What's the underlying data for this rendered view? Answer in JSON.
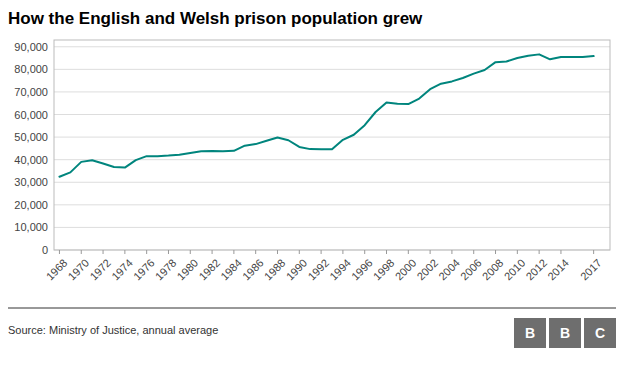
{
  "chart_data": {
    "type": "line",
    "title": "How the English and Welsh prison population grew",
    "source": "Source: Ministry of Justice, annual average",
    "logo_letters": [
      "B",
      "B",
      "C"
    ],
    "color": "#00857d",
    "grid": true,
    "x": [
      1968,
      1969,
      1970,
      1971,
      1972,
      1973,
      1974,
      1975,
      1976,
      1977,
      1978,
      1979,
      1980,
      1981,
      1982,
      1983,
      1984,
      1985,
      1986,
      1987,
      1988,
      1989,
      1990,
      1991,
      1992,
      1993,
      1994,
      1995,
      1996,
      1997,
      1998,
      1999,
      2000,
      2001,
      2002,
      2003,
      2004,
      2005,
      2006,
      2007,
      2008,
      2009,
      2010,
      2011,
      2012,
      2013,
      2014,
      2015,
      2016,
      2017
    ],
    "values": [
      32461,
      34374,
      39028,
      39709,
      38328,
      36774,
      36500,
      39820,
      41570,
      41570,
      41796,
      42220,
      43000,
      43700,
      43800,
      43700,
      43900,
      46200,
      46900,
      48400,
      49800,
      48600,
      45636,
      44678,
      44628,
      44565,
      48794,
      51047,
      55281,
      61114,
      65298,
      64770,
      64602,
      67055,
      71218,
      73657,
      74657,
      76190,
      78127,
      79734,
      83194,
      83454,
      85002,
      86048,
      86634,
      84430,
      85509,
      85509,
      85509,
      85864
    ],
    "xlim": [
      1967.5,
      2018.5
    ],
    "xticks": [
      1968,
      1970,
      1972,
      1974,
      1976,
      1978,
      1980,
      1982,
      1984,
      1986,
      1988,
      1990,
      1992,
      1994,
      1996,
      1998,
      2000,
      2002,
      2004,
      2006,
      2008,
      2010,
      2012,
      2014,
      2017
    ],
    "ylim": [
      0,
      93000
    ],
    "yticks": [
      0,
      {
        "value": 10000,
        "label": "10,000"
      },
      {
        "value": 20000,
        "label": "20,000"
      },
      {
        "value": 30000,
        "label": "30,000"
      },
      {
        "value": 40000,
        "label": "40,000"
      },
      {
        "value": 50000,
        "label": "50,000"
      },
      {
        "value": 60000,
        "label": "60,000"
      },
      {
        "value": 70000,
        "label": "70,000"
      },
      {
        "value": 80000,
        "label": "80,000"
      },
      {
        "value": 90000,
        "label": "90,000"
      }
    ]
  }
}
